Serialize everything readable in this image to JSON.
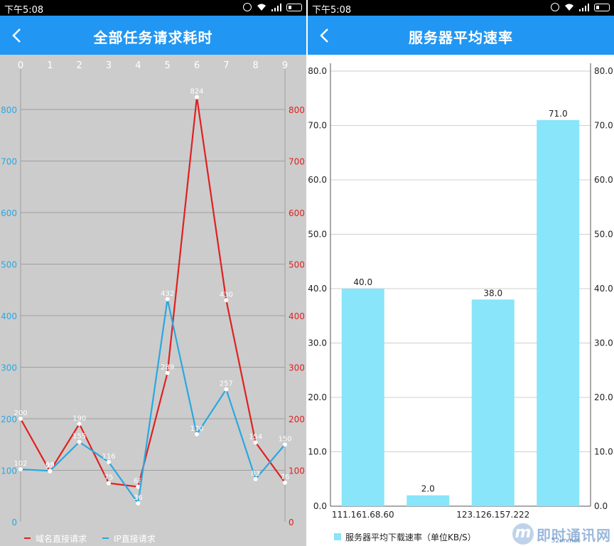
{
  "status": {
    "time": "下午5:08"
  },
  "left_screen": {
    "title": "全部任务请求耗时"
  },
  "right_screen": {
    "title": "服务器平均速率"
  },
  "watermark": {
    "text": "即时通讯网",
    "url": "52im.net"
  },
  "colors": {
    "header": "#2196f3",
    "line_red": "#e02020",
    "line_blue": "#29a8e0",
    "bar": "#89e5f9",
    "left_bg": "#cccccc"
  },
  "chart_data": [
    {
      "type": "line",
      "title": "全部任务请求耗时",
      "x": [
        "0",
        "1",
        "2",
        "3",
        "4",
        "5",
        "6",
        "7",
        "8",
        "9"
      ],
      "y_ticks": [
        "0",
        "100",
        "200",
        "300",
        "400",
        "500",
        "600",
        "700",
        "800"
      ],
      "ylim": [
        0,
        800
      ],
      "grid": true,
      "legend_position": "bottom-left",
      "series": [
        {
          "name": "域名直接请求",
          "color": "#e02020",
          "values": [
            200,
            98,
            190,
            75,
            68,
            289,
            824,
            430,
            154,
            76
          ]
        },
        {
          "name": "IP直接请求",
          "color": "#29a8e0",
          "values": [
            102,
            99,
            155,
            116,
            36,
            432,
            170,
            257,
            83,
            150
          ]
        }
      ]
    },
    {
      "type": "bar",
      "title": "服务器平均速率",
      "categories": [
        "111.161.68.60",
        "",
        "123.126.157.222",
        ""
      ],
      "values": [
        40.0,
        2.0,
        38.0,
        71.0
      ],
      "value_labels": [
        "40.0",
        "2.0",
        "38.0",
        "71.0"
      ],
      "y_ticks": [
        "0.0",
        "10.0",
        "20.0",
        "30.0",
        "40.0",
        "50.0",
        "60.0",
        "70.0",
        "80.0"
      ],
      "ylim": [
        0,
        80
      ],
      "grid": true,
      "legend_position": "bottom-left",
      "legend": "服务器平均下载速率（单位KB/S）",
      "color": "#89e5f9"
    }
  ]
}
